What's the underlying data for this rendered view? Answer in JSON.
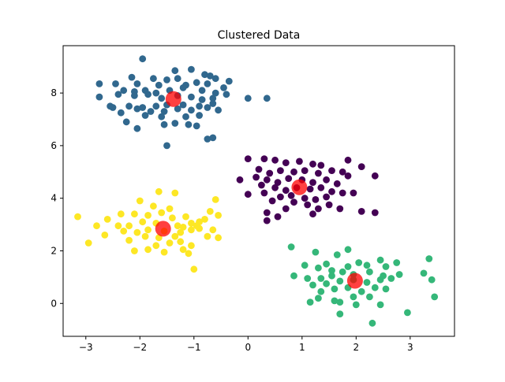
{
  "chart_data": {
    "type": "scatter",
    "title": "Clustered Data",
    "xlabel": "",
    "ylabel": "",
    "xlim": [
      -3.42,
      3.82
    ],
    "ylim": [
      -1.25,
      9.8
    ],
    "xticks": [
      -3,
      -2,
      -1,
      0,
      1,
      2,
      3
    ],
    "yticks": [
      0,
      2,
      4,
      6,
      8
    ],
    "grid": false,
    "legend": "none",
    "series": [
      {
        "color": "#31688e",
        "points": [
          [
            -1.95,
            9.3
          ],
          [
            -1.35,
            8.85
          ],
          [
            -1.05,
            8.9
          ],
          [
            -2.15,
            8.6
          ],
          [
            -1.75,
            8.55
          ],
          [
            -1.5,
            8.5
          ],
          [
            -1.3,
            8.55
          ],
          [
            -0.8,
            8.7
          ],
          [
            -0.7,
            8.65
          ],
          [
            -0.6,
            8.55
          ],
          [
            -0.35,
            8.45
          ],
          [
            -2.75,
            8.35
          ],
          [
            -2.45,
            8.35
          ],
          [
            -2.05,
            8.35
          ],
          [
            -1.65,
            8.3
          ],
          [
            -1.15,
            8.3
          ],
          [
            -0.95,
            8.4
          ],
          [
            -0.75,
            8.35
          ],
          [
            -0.45,
            8.2
          ],
          [
            -2.3,
            8.1
          ],
          [
            -2.1,
            8.05
          ],
          [
            -1.9,
            8.1
          ],
          [
            -1.7,
            8.0
          ],
          [
            -1.45,
            8.1
          ],
          [
            -1.2,
            8.2
          ],
          [
            -0.85,
            8.1
          ],
          [
            -0.6,
            8.0
          ],
          [
            -2.75,
            7.85
          ],
          [
            -2.4,
            7.95
          ],
          [
            -2.1,
            7.9
          ],
          [
            -1.85,
            7.95
          ],
          [
            -1.6,
            7.8
          ],
          [
            -1.3,
            7.9
          ],
          [
            -1.05,
            7.85
          ],
          [
            -0.85,
            7.75
          ],
          [
            -0.65,
            7.8
          ],
          [
            -0.4,
            7.95
          ],
          [
            0.0,
            7.8
          ],
          [
            0.35,
            7.8
          ],
          [
            -2.55,
            7.5
          ],
          [
            -2.2,
            7.5
          ],
          [
            -1.95,
            7.45
          ],
          [
            -1.7,
            7.5
          ],
          [
            -1.5,
            7.55
          ],
          [
            -1.2,
            7.55
          ],
          [
            -0.9,
            7.5
          ],
          [
            -0.65,
            7.6
          ],
          [
            -2.5,
            7.45
          ],
          [
            -2.05,
            7.4
          ],
          [
            -1.8,
            7.3
          ],
          [
            -1.55,
            7.3
          ],
          [
            -1.3,
            7.4
          ],
          [
            -1.05,
            7.35
          ],
          [
            -0.75,
            7.45
          ],
          [
            -0.55,
            7.35
          ],
          [
            -2.35,
            7.25
          ],
          [
            -1.9,
            7.15
          ],
          [
            -1.6,
            7.1
          ],
          [
            -1.15,
            7.1
          ],
          [
            -0.9,
            7.15
          ],
          [
            -2.25,
            6.9
          ],
          [
            -2.05,
            6.65
          ],
          [
            -1.35,
            6.85
          ],
          [
            -1.1,
            6.8
          ],
          [
            -0.95,
            6.75
          ],
          [
            -1.55,
            6.8
          ],
          [
            -0.75,
            6.25
          ],
          [
            -0.65,
            6.3
          ],
          [
            -1.5,
            6.0
          ]
        ]
      },
      {
        "color": "#440154",
        "points": [
          [
            -0.15,
            4.7
          ],
          [
            0.0,
            5.5
          ],
          [
            0.3,
            5.5
          ],
          [
            0.5,
            5.45
          ],
          [
            0.7,
            5.35
          ],
          [
            0.95,
            5.4
          ],
          [
            1.2,
            5.3
          ],
          [
            1.35,
            5.25
          ],
          [
            1.85,
            5.45
          ],
          [
            2.1,
            5.2
          ],
          [
            0.2,
            5.1
          ],
          [
            0.4,
            4.95
          ],
          [
            0.6,
            5.05
          ],
          [
            0.85,
            5.0
          ],
          [
            1.05,
            5.05
          ],
          [
            1.3,
            4.95
          ],
          [
            1.55,
            5.05
          ],
          [
            1.75,
            5.0
          ],
          [
            2.35,
            4.85
          ],
          [
            0.15,
            4.8
          ],
          [
            0.35,
            4.7
          ],
          [
            0.55,
            4.6
          ],
          [
            0.75,
            4.75
          ],
          [
            1.0,
            4.7
          ],
          [
            1.2,
            4.6
          ],
          [
            1.45,
            4.7
          ],
          [
            1.65,
            4.55
          ],
          [
            1.85,
            4.85
          ],
          [
            0.25,
            4.5
          ],
          [
            0.5,
            4.4
          ],
          [
            0.7,
            4.3
          ],
          [
            0.9,
            4.4
          ],
          [
            1.15,
            4.35
          ],
          [
            1.35,
            4.4
          ],
          [
            1.55,
            4.25
          ],
          [
            1.75,
            4.2
          ],
          [
            1.95,
            4.2
          ],
          [
            0.0,
            4.15
          ],
          [
            0.3,
            4.2
          ],
          [
            0.6,
            4.05
          ],
          [
            0.8,
            4.1
          ],
          [
            1.05,
            4.0
          ],
          [
            1.25,
            3.95
          ],
          [
            1.45,
            4.05
          ],
          [
            0.45,
            3.9
          ],
          [
            0.85,
            3.85
          ],
          [
            1.1,
            3.75
          ],
          [
            1.3,
            3.6
          ],
          [
            1.5,
            3.75
          ],
          [
            0.7,
            3.6
          ],
          [
            0.35,
            3.45
          ],
          [
            0.55,
            3.3
          ],
          [
            0.35,
            3.15
          ],
          [
            1.2,
            3.4
          ],
          [
            2.1,
            3.5
          ],
          [
            2.35,
            3.45
          ],
          [
            1.7,
            3.6
          ]
        ]
      },
      {
        "color": "#fde725",
        "points": [
          [
            -1.65,
            4.25
          ],
          [
            -1.35,
            4.2
          ],
          [
            -0.6,
            3.95
          ],
          [
            -2.0,
            3.9
          ],
          [
            -1.75,
            3.7
          ],
          [
            -1.45,
            3.6
          ],
          [
            -2.35,
            3.4
          ],
          [
            -2.1,
            3.4
          ],
          [
            -1.85,
            3.35
          ],
          [
            -1.6,
            3.45
          ],
          [
            -1.4,
            3.25
          ],
          [
            -1.15,
            3.3
          ],
          [
            -0.7,
            3.5
          ],
          [
            -0.55,
            3.35
          ],
          [
            -3.15,
            3.3
          ],
          [
            -2.6,
            3.2
          ],
          [
            -1.95,
            3.1
          ],
          [
            -1.7,
            3.05
          ],
          [
            -1.05,
            3.05
          ],
          [
            -0.9,
            3.1
          ],
          [
            -0.8,
            3.2
          ],
          [
            -2.8,
            2.95
          ],
          [
            -2.4,
            2.95
          ],
          [
            -2.2,
            2.95
          ],
          [
            -1.3,
            2.95
          ],
          [
            -1.2,
            2.9
          ],
          [
            -0.95,
            2.95
          ],
          [
            -0.65,
            2.8
          ],
          [
            -2.3,
            2.75
          ],
          [
            -2.05,
            2.7
          ],
          [
            -1.85,
            2.8
          ],
          [
            -1.55,
            2.75
          ],
          [
            -1.25,
            2.7
          ],
          [
            -1.05,
            2.8
          ],
          [
            -0.9,
            2.85
          ],
          [
            -2.65,
            2.6
          ],
          [
            -1.9,
            2.55
          ],
          [
            -1.65,
            2.5
          ],
          [
            -1.35,
            2.55
          ],
          [
            -0.75,
            2.55
          ],
          [
            -0.55,
            2.5
          ],
          [
            -2.2,
            2.4
          ],
          [
            -1.45,
            2.3
          ],
          [
            -1.25,
            2.35
          ],
          [
            -2.95,
            2.3
          ],
          [
            -1.7,
            2.2
          ],
          [
            -1.05,
            2.2
          ],
          [
            -2.1,
            2.0
          ],
          [
            -1.85,
            2.05
          ],
          [
            -1.55,
            1.95
          ],
          [
            -1.2,
            2.05
          ],
          [
            -1.1,
            1.9
          ],
          [
            -1.0,
            1.3
          ]
        ]
      },
      {
        "color": "#35b779",
        "points": [
          [
            0.8,
            2.15
          ],
          [
            1.25,
            1.95
          ],
          [
            1.45,
            1.5
          ],
          [
            1.65,
            1.85
          ],
          [
            1.85,
            2.05
          ],
          [
            2.05,
            1.55
          ],
          [
            2.45,
            1.65
          ],
          [
            2.75,
            1.55
          ],
          [
            3.35,
            1.7
          ],
          [
            1.05,
            1.45
          ],
          [
            1.3,
            1.35
          ],
          [
            1.55,
            1.25
          ],
          [
            1.85,
            1.4
          ],
          [
            2.2,
            1.45
          ],
          [
            2.55,
            1.4
          ],
          [
            0.85,
            1.05
          ],
          [
            1.1,
            0.95
          ],
          [
            1.35,
            0.95
          ],
          [
            1.55,
            1.05
          ],
          [
            1.75,
            1.2
          ],
          [
            1.95,
            1.1
          ],
          [
            2.25,
            1.2
          ],
          [
            2.5,
            1.05
          ],
          [
            2.8,
            1.1
          ],
          [
            3.25,
            1.15
          ],
          [
            1.2,
            0.7
          ],
          [
            1.45,
            0.75
          ],
          [
            1.7,
            0.85
          ],
          [
            1.95,
            0.9
          ],
          [
            2.2,
            0.8
          ],
          [
            2.45,
            0.9
          ],
          [
            2.65,
            0.95
          ],
          [
            3.4,
            0.9
          ],
          [
            1.35,
            0.45
          ],
          [
            1.6,
            0.55
          ],
          [
            1.85,
            0.6
          ],
          [
            2.1,
            0.45
          ],
          [
            2.35,
            0.6
          ],
          [
            2.55,
            0.55
          ],
          [
            1.3,
            0.2
          ],
          [
            1.6,
            0.1
          ],
          [
            1.95,
            0.25
          ],
          [
            2.25,
            0.25
          ],
          [
            1.15,
            0.05
          ],
          [
            1.7,
            0.05
          ],
          [
            2.0,
            -0.05
          ],
          [
            2.45,
            -0.05
          ],
          [
            3.45,
            0.25
          ],
          [
            1.7,
            -0.4
          ],
          [
            2.95,
            -0.35
          ],
          [
            2.3,
            -0.75
          ]
        ]
      }
    ],
    "centroids": {
      "color": "#ff0000",
      "points": [
        [
          -1.38,
          7.77
        ],
        [
          0.95,
          4.42
        ],
        [
          -1.57,
          2.84
        ],
        [
          1.98,
          0.86
        ]
      ]
    }
  }
}
